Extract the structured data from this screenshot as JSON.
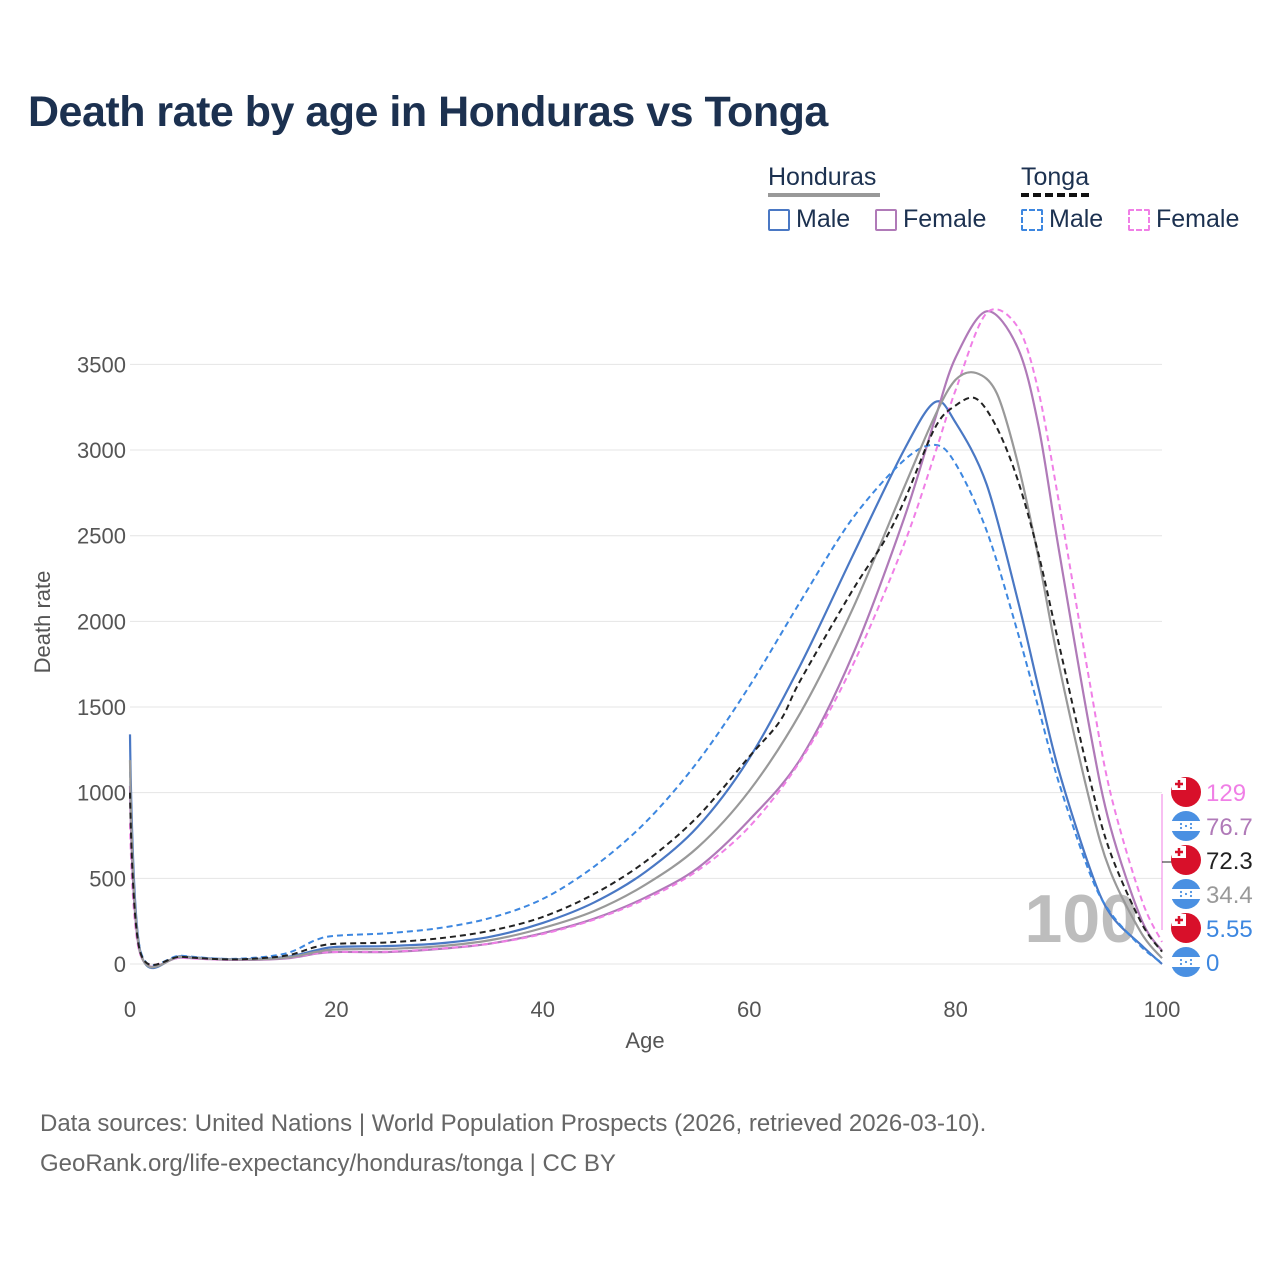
{
  "title": "Death rate by age in Honduras vs Tonga",
  "legend": {
    "groups": [
      {
        "name": "Honduras",
        "line_color": "#999999",
        "dash": false,
        "items": [
          {
            "label": "Male",
            "color": "#4a78c4"
          },
          {
            "label": "Female",
            "color": "#b07ab8"
          }
        ]
      },
      {
        "name": "Tonga",
        "line_color": "#111111",
        "dash": true,
        "items": [
          {
            "label": "Male",
            "color": "#3d87e0"
          },
          {
            "label": "Female",
            "color": "#f07fe6"
          }
        ]
      }
    ]
  },
  "watermark": "100",
  "end_labels": [
    {
      "text": "129",
      "color": "#f07fe6",
      "flag": "tonga"
    },
    {
      "text": "76.7",
      "color": "#b07ab8",
      "flag": "honduras"
    },
    {
      "text": "72.3",
      "color": "#222222",
      "flag": "tonga"
    },
    {
      "text": "34.4",
      "color": "#999999",
      "flag": "honduras"
    },
    {
      "text": "5.55",
      "color": "#3d87e0",
      "flag": "tonga"
    },
    {
      "text": "0",
      "color": "#3d87e0",
      "flag": "honduras"
    }
  ],
  "footer": {
    "line1": "Data sources: United Nations | World Population Prospects (2026, retrieved 2026-03-10).",
    "line2": "GeoRank.org/life-expectancy/honduras/tonga | CC BY"
  },
  "chart_data": {
    "type": "line",
    "title": "Death rate by age in Honduras vs Tonga",
    "xlabel": "Age",
    "ylabel": "Death rate",
    "xlim": [
      0,
      100
    ],
    "ylim": [
      0,
      3800
    ],
    "xticks": [
      0,
      20,
      40,
      60,
      80,
      100
    ],
    "yticks": [
      0,
      500,
      1000,
      1500,
      2000,
      2500,
      3000,
      3500
    ],
    "series": [
      {
        "name": "Honduras Male",
        "color": "#4a78c4",
        "dash": false,
        "points": [
          [
            0,
            1340
          ],
          [
            1,
            75
          ],
          [
            5,
            45
          ],
          [
            10,
            28
          ],
          [
            15,
            40
          ],
          [
            18,
            80
          ],
          [
            20,
            100
          ],
          [
            25,
            105
          ],
          [
            30,
            120
          ],
          [
            35,
            160
          ],
          [
            40,
            240
          ],
          [
            45,
            360
          ],
          [
            50,
            540
          ],
          [
            55,
            800
          ],
          [
            60,
            1200
          ],
          [
            65,
            1750
          ],
          [
            70,
            2380
          ],
          [
            75,
            3000
          ],
          [
            78,
            3280
          ],
          [
            80,
            3160
          ],
          [
            83,
            2800
          ],
          [
            86,
            2130
          ],
          [
            88,
            1620
          ],
          [
            90,
            1130
          ],
          [
            93,
            560
          ],
          [
            95,
            290
          ],
          [
            98,
            110
          ],
          [
            100,
            0
          ]
        ]
      },
      {
        "name": "Honduras Female",
        "color": "#b07ab8",
        "dash": false,
        "points": [
          [
            0,
            1040
          ],
          [
            1,
            60
          ],
          [
            5,
            38
          ],
          [
            10,
            24
          ],
          [
            15,
            32
          ],
          [
            18,
            60
          ],
          [
            20,
            70
          ],
          [
            25,
            70
          ],
          [
            30,
            88
          ],
          [
            35,
            120
          ],
          [
            40,
            180
          ],
          [
            45,
            265
          ],
          [
            50,
            390
          ],
          [
            55,
            560
          ],
          [
            60,
            840
          ],
          [
            65,
            1200
          ],
          [
            70,
            1800
          ],
          [
            75,
            2600
          ],
          [
            78,
            3180
          ],
          [
            80,
            3540
          ],
          [
            83,
            3810
          ],
          [
            86,
            3600
          ],
          [
            88,
            3150
          ],
          [
            90,
            2420
          ],
          [
            93,
            1370
          ],
          [
            95,
            800
          ],
          [
            98,
            260
          ],
          [
            100,
            77
          ]
        ]
      },
      {
        "name": "Tonga Male",
        "color": "#3d87e0",
        "dash": true,
        "points": [
          [
            0,
            1180
          ],
          [
            1,
            80
          ],
          [
            5,
            48
          ],
          [
            10,
            30
          ],
          [
            15,
            60
          ],
          [
            18,
            140
          ],
          [
            20,
            165
          ],
          [
            25,
            180
          ],
          [
            30,
            210
          ],
          [
            35,
            270
          ],
          [
            40,
            380
          ],
          [
            45,
            570
          ],
          [
            50,
            830
          ],
          [
            55,
            1180
          ],
          [
            60,
            1620
          ],
          [
            65,
            2120
          ],
          [
            70,
            2600
          ],
          [
            75,
            2940
          ],
          [
            78,
            3030
          ],
          [
            80,
            2920
          ],
          [
            83,
            2530
          ],
          [
            86,
            1940
          ],
          [
            88,
            1500
          ],
          [
            90,
            1060
          ],
          [
            93,
            530
          ],
          [
            95,
            300
          ],
          [
            98,
            100
          ],
          [
            100,
            6
          ]
        ]
      },
      {
        "name": "Tonga Female",
        "color": "#f07fe6",
        "dash": true,
        "points": [
          [
            0,
            820
          ],
          [
            1,
            55
          ],
          [
            5,
            36
          ],
          [
            10,
            24
          ],
          [
            15,
            35
          ],
          [
            18,
            62
          ],
          [
            20,
            70
          ],
          [
            25,
            72
          ],
          [
            30,
            90
          ],
          [
            35,
            120
          ],
          [
            40,
            175
          ],
          [
            45,
            260
          ],
          [
            50,
            380
          ],
          [
            55,
            545
          ],
          [
            60,
            800
          ],
          [
            65,
            1190
          ],
          [
            70,
            1740
          ],
          [
            75,
            2450
          ],
          [
            78,
            2980
          ],
          [
            80,
            3350
          ],
          [
            83,
            3800
          ],
          [
            86,
            3720
          ],
          [
            88,
            3350
          ],
          [
            90,
            2700
          ],
          [
            93,
            1640
          ],
          [
            95,
            1000
          ],
          [
            98,
            380
          ],
          [
            100,
            129
          ]
        ]
      },
      {
        "name": "Honduras (average)",
        "color": "#999999",
        "dash": false,
        "points": [
          [
            0,
            1190
          ],
          [
            1,
            68
          ],
          [
            5,
            42
          ],
          [
            10,
            26
          ],
          [
            15,
            36
          ],
          [
            18,
            70
          ],
          [
            20,
            85
          ],
          [
            25,
            88
          ],
          [
            30,
            104
          ],
          [
            35,
            140
          ],
          [
            40,
            210
          ],
          [
            45,
            310
          ],
          [
            50,
            465
          ],
          [
            55,
            680
          ],
          [
            60,
            1010
          ],
          [
            65,
            1470
          ],
          [
            70,
            2070
          ],
          [
            75,
            2780
          ],
          [
            78,
            3200
          ],
          [
            80,
            3410
          ],
          [
            82,
            3450
          ],
          [
            84,
            3330
          ],
          [
            86,
            2930
          ],
          [
            88,
            2380
          ],
          [
            90,
            1750
          ],
          [
            93,
            950
          ],
          [
            95,
            540
          ],
          [
            98,
            180
          ],
          [
            100,
            34
          ]
        ]
      },
      {
        "name": "Tonga (average)",
        "color": "#222222",
        "dash": true,
        "points": [
          [
            0,
            1000
          ],
          [
            1,
            68
          ],
          [
            5,
            42
          ],
          [
            10,
            27
          ],
          [
            15,
            48
          ],
          [
            18,
            100
          ],
          [
            20,
            118
          ],
          [
            25,
            126
          ],
          [
            30,
            150
          ],
          [
            35,
            195
          ],
          [
            40,
            275
          ],
          [
            45,
            410
          ],
          [
            50,
            600
          ],
          [
            55,
            860
          ],
          [
            60,
            1210
          ],
          [
            63,
            1420
          ],
          [
            65,
            1660
          ],
          [
            70,
            2180
          ],
          [
            73,
            2460
          ],
          [
            75,
            2700
          ],
          [
            78,
            3130
          ],
          [
            80,
            3260
          ],
          [
            82,
            3300
          ],
          [
            84,
            3130
          ],
          [
            86,
            2830
          ],
          [
            88,
            2400
          ],
          [
            90,
            1870
          ],
          [
            93,
            1080
          ],
          [
            95,
            650
          ],
          [
            98,
            240
          ],
          [
            100,
            72
          ]
        ]
      }
    ]
  }
}
